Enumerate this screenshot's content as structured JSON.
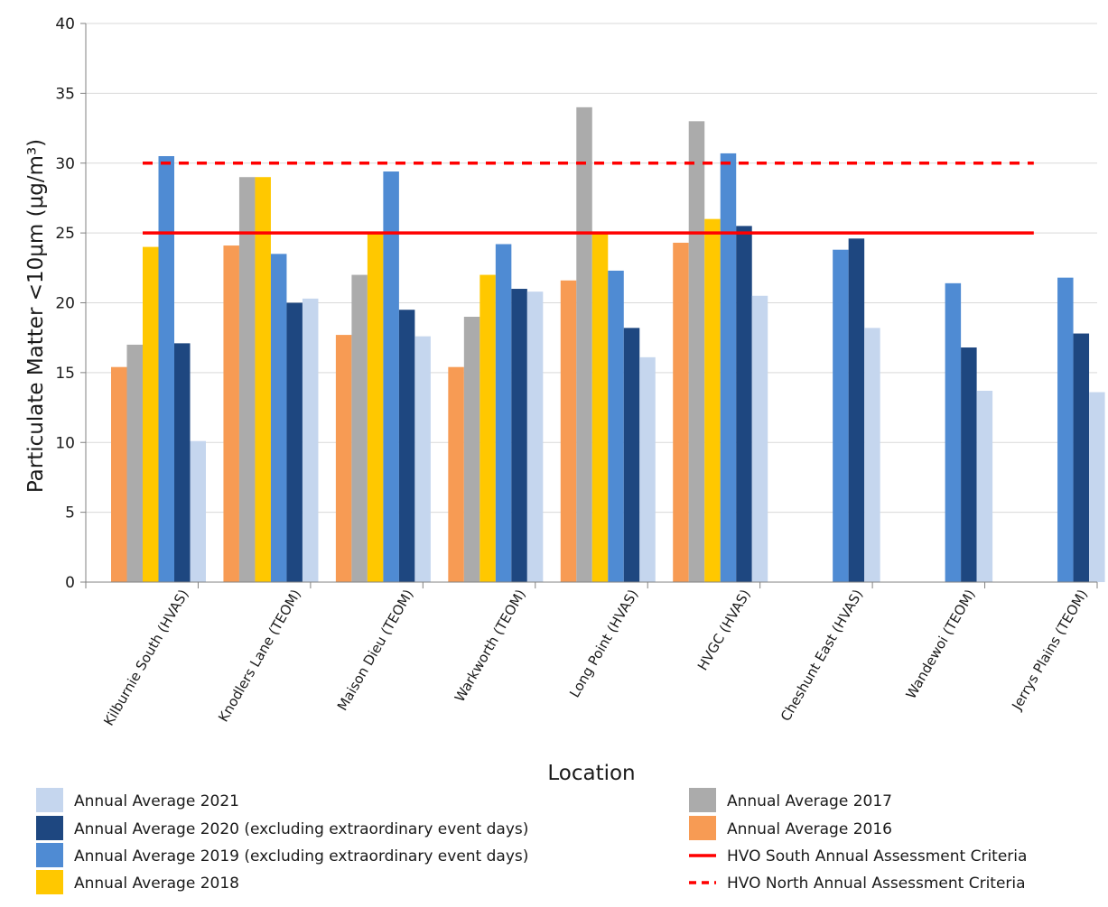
{
  "chart_data": {
    "type": "bar",
    "xlabel": "Location",
    "ylabel": "Particulate Matter <10μm (μg/m³)",
    "ylim": [
      0,
      40
    ],
    "yticks": [
      0,
      5,
      10,
      15,
      20,
      25,
      30,
      35,
      40
    ],
    "grid": true,
    "legend_position": "bottom",
    "categories": [
      "Kilburnie South (HVAS)",
      "Knodlers Lane (TEOM)",
      "Maison Dieu (TEOM)",
      "Warkworth (TEOM)",
      "Long Point (HVAS)",
      "HVGC (HVAS)",
      "Cheshunt East (HVAS)",
      "Wandewoi (TEOM)",
      "Jerrys Plains (TEOM)"
    ],
    "series": [
      {
        "name": "Annual Average 2016",
        "color": "#F79B54",
        "values": [
          15.4,
          24.1,
          17.7,
          15.4,
          21.6,
          24.3,
          null,
          null,
          null
        ]
      },
      {
        "name": "Annual Average 2017",
        "color": "#ABABAB",
        "values": [
          17.0,
          29.0,
          22.0,
          19.0,
          34.0,
          33.0,
          null,
          null,
          null
        ]
      },
      {
        "name": "Annual Average 2018",
        "color": "#FFC800",
        "values": [
          24.0,
          29.0,
          25.0,
          22.0,
          25.0,
          26.0,
          null,
          null,
          null
        ]
      },
      {
        "name": "Annual Average 2019 (excluding extraordinary event days)",
        "color": "#4F8BD3",
        "values": [
          30.5,
          23.5,
          29.4,
          24.2,
          22.3,
          30.7,
          23.8,
          21.4,
          21.8
        ]
      },
      {
        "name": "Annual Average 2020 (excluding extraordinary event days)",
        "color": "#1E4780",
        "values": [
          17.1,
          20.0,
          19.5,
          21.0,
          18.2,
          25.5,
          24.6,
          16.8,
          17.8
        ]
      },
      {
        "name": "Annual Average 2021",
        "color": "#C5D6EE",
        "values": [
          10.1,
          20.3,
          17.6,
          20.8,
          16.1,
          20.5,
          18.2,
          13.7,
          13.6
        ]
      }
    ],
    "reference_lines": [
      {
        "name": "HVO South Annual Assessment Criteria",
        "value": 25,
        "color": "#FF0000",
        "style": "solid"
      },
      {
        "name": "HVO North Annual Assessment Criteria",
        "value": 30,
        "color": "#FF0000",
        "style": "dashed"
      }
    ],
    "legend": [
      {
        "name": "Annual Average 2021",
        "kind": "box",
        "color": "#C5D6EE",
        "col": 0,
        "row": 0
      },
      {
        "name": "Annual Average 2020 (excluding extraordinary event days)",
        "kind": "box",
        "color": "#1E4780",
        "col": 0,
        "row": 1
      },
      {
        "name": "Annual Average 2019 (excluding extraordinary event days)",
        "kind": "box",
        "color": "#4F8BD3",
        "col": 0,
        "row": 2
      },
      {
        "name": "Annual Average 2018",
        "kind": "box",
        "color": "#FFC800",
        "col": 0,
        "row": 3
      },
      {
        "name": "Annual Average 2017",
        "kind": "box",
        "color": "#ABABAB",
        "col": 1,
        "row": 0
      },
      {
        "name": "Annual Average 2016",
        "kind": "box",
        "color": "#F79B54",
        "col": 1,
        "row": 1
      },
      {
        "name": "HVO South Annual Assessment Criteria",
        "kind": "solid",
        "color": "#FF0000",
        "col": 1,
        "row": 2
      },
      {
        "name": "HVO North Annual Assessment Criteria",
        "kind": "dashed",
        "color": "#FF0000",
        "col": 1,
        "row": 3
      }
    ]
  }
}
